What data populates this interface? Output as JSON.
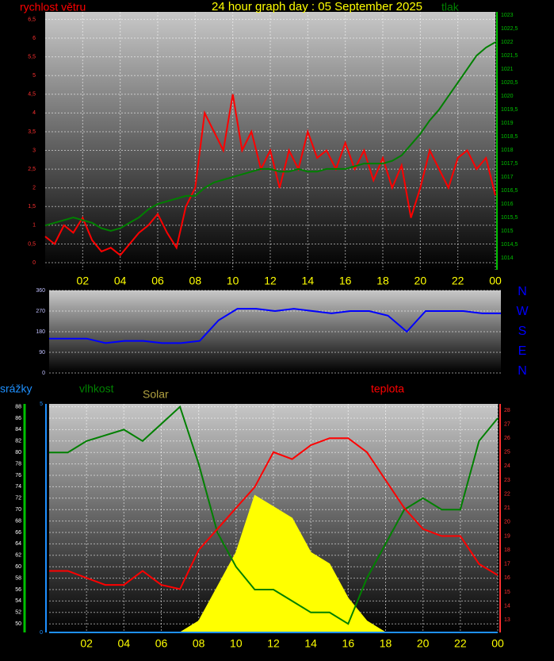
{
  "chart_data": [
    {
      "type": "line",
      "title": "24 hour graph day : 05 September 2025",
      "x": [
        0,
        0.5,
        1,
        1.5,
        2,
        2.5,
        3,
        3.5,
        4,
        4.5,
        5,
        5.5,
        6,
        6.5,
        7,
        7.5,
        8,
        8.5,
        9,
        9.5,
        10,
        10.5,
        11,
        11.5,
        12,
        12.5,
        13,
        13.5,
        14,
        14.5,
        15,
        15.5,
        16,
        16.5,
        17,
        17.5,
        18,
        18.5,
        19,
        19.5,
        20,
        20.5,
        21,
        21.5,
        22,
        22.5,
        23,
        23.5,
        24
      ],
      "xlim": [
        0,
        24
      ],
      "xticks": [
        {
          "value": 2,
          "label": "02"
        },
        {
          "value": 4,
          "label": "04"
        },
        {
          "value": 6,
          "label": "06"
        },
        {
          "value": 8,
          "label": "08"
        },
        10,
        12,
        14,
        16,
        18,
        20,
        22,
        {
          "value": 24,
          "label": "00"
        }
      ],
      "ylim": [
        -0.19,
        6.7
      ],
      "yticks": [
        0,
        {
          "value": 0.5,
          "label": "0,5"
        },
        1,
        {
          "value": 1.5,
          "label": "1,5"
        },
        2,
        {
          "value": 2.5,
          "label": "2,5"
        },
        3,
        {
          "value": 3.5,
          "label": "3,5"
        },
        4,
        {
          "value": 4.5,
          "label": "4,5"
        },
        5,
        {
          "value": 5.5,
          "label": "5,5"
        },
        6,
        {
          "value": 6.5,
          "label": "6,5"
        }
      ],
      "y2lim": [
        1013.56,
        1023.12
      ],
      "y2ticks": [
        1014,
        {
          "value": 1014.5,
          "label": "1014,5"
        },
        1015,
        {
          "value": 1015.5,
          "label": "1015,5"
        },
        1016,
        {
          "value": 1016.5,
          "label": "1016,5"
        },
        1017,
        {
          "value": 1017.5,
          "label": "1017,5"
        },
        1018,
        {
          "value": 1018.5,
          "label": "1018,5"
        },
        1019,
        {
          "value": 1019.5,
          "label": "1019,5"
        },
        1020,
        {
          "value": 1020.5,
          "label": "1020,5"
        },
        1021,
        {
          "value": 1021.5,
          "label": "1021,5"
        },
        1022,
        {
          "value": 1022.5,
          "label": "1022,5"
        },
        1023
      ],
      "grid": true,
      "series": [
        {
          "name": "rychlost větru",
          "color": "#ff0000",
          "values": [
            0.7,
            0.5,
            1.0,
            0.8,
            1.2,
            0.6,
            0.3,
            0.4,
            0.2,
            0.5,
            0.8,
            1.0,
            1.3,
            0.8,
            0.4,
            1.5,
            2.0,
            4.0,
            3.5,
            3.0,
            4.5,
            3.0,
            3.5,
            2.5,
            3.0,
            2.0,
            3.0,
            2.5,
            3.5,
            2.8,
            3.0,
            2.5,
            3.2,
            2.5,
            3.0,
            2.2,
            2.8,
            2.0,
            2.6,
            1.2,
            2.0,
            3.0,
            2.5,
            2.0,
            2.8,
            3.0,
            2.5,
            2.8,
            1.8
          ]
        },
        {
          "name": "tlak",
          "color": "#008000",
          "axis": "y2",
          "values": [
            1015.2,
            1015.3,
            1015.4,
            1015.5,
            1015.4,
            1015.3,
            1015.1,
            1015.0,
            1015.1,
            1015.3,
            1015.5,
            1015.8,
            1016.0,
            1016.1,
            1016.2,
            1016.3,
            1016.3,
            1016.6,
            1016.8,
            1016.9,
            1017.0,
            1017.1,
            1017.2,
            1017.3,
            1017.3,
            1017.2,
            1017.2,
            1017.3,
            1017.2,
            1017.2,
            1017.3,
            1017.3,
            1017.3,
            1017.4,
            1017.5,
            1017.5,
            1017.5,
            1017.6,
            1017.8,
            1018.2,
            1018.6,
            1019.1,
            1019.5,
            1020.0,
            1020.5,
            1021.0,
            1021.5,
            1021.8,
            1022.0
          ]
        }
      ]
    },
    {
      "type": "line",
      "x": [
        0,
        1,
        2,
        3,
        4,
        5,
        6,
        7,
        8,
        9,
        10,
        11,
        12,
        13,
        14,
        15,
        16,
        17,
        18,
        19,
        20,
        21,
        22,
        23,
        24
      ],
      "xlim": [
        0,
        24
      ],
      "ylim": [
        0,
        360
      ],
      "yticks": [
        0,
        90,
        180,
        270,
        360
      ],
      "grid": true,
      "direction_labels": [
        "N",
        "W",
        "S",
        "E",
        "N"
      ],
      "series": [
        {
          "color": "#0000ff",
          "values": [
            150,
            150,
            150,
            130,
            140,
            140,
            130,
            130,
            140,
            230,
            280,
            280,
            270,
            280,
            270,
            260,
            270,
            270,
            250,
            180,
            270,
            270,
            270,
            260,
            260
          ]
        }
      ]
    },
    {
      "type": "line",
      "x": [
        0,
        1,
        2,
        3,
        4,
        5,
        6,
        7,
        8,
        9,
        10,
        11,
        12,
        13,
        14,
        15,
        16,
        17,
        18,
        19,
        20,
        21,
        22,
        23,
        24
      ],
      "xlim": [
        0,
        24
      ],
      "xticks": [
        {
          "value": 2,
          "label": "02"
        },
        {
          "value": 4,
          "label": "04"
        },
        {
          "value": 6,
          "label": "06"
        },
        {
          "value": 8,
          "label": "08"
        },
        10,
        12,
        14,
        16,
        18,
        20,
        22,
        {
          "value": 24,
          "label": "00"
        }
      ],
      "ylim": [
        48.5,
        88.5
      ],
      "yticks": [
        50,
        52,
        54,
        56,
        58,
        60,
        62,
        64,
        66,
        68,
        70,
        72,
        74,
        76,
        78,
        80,
        82,
        84,
        86,
        88
      ],
      "y2lim": [
        12.1,
        28.45
      ],
      "y2ticks": [
        13,
        14,
        15,
        16,
        17,
        18,
        19,
        20,
        21,
        22,
        23,
        24,
        25,
        26,
        27,
        28
      ],
      "y3lim": [
        0,
        5
      ],
      "y3ticks": [
        0,
        5
      ],
      "y4lim": [
        0,
        100
      ],
      "grid": true,
      "series": [
        {
          "name": "srážky",
          "color": "#1e90ff",
          "axis": "y3",
          "values": [
            0,
            0,
            0,
            0,
            0,
            0,
            0,
            0,
            0,
            0,
            0,
            0,
            0,
            0,
            0,
            0,
            0,
            0,
            0,
            0,
            0,
            0,
            0,
            0,
            0
          ]
        },
        {
          "name": "vlhkost",
          "color": "#008000",
          "values": [
            80,
            80,
            82,
            83,
            84,
            82,
            85,
            88,
            78,
            66,
            60,
            56,
            56,
            54,
            52,
            52,
            50,
            58,
            64,
            70,
            72,
            70,
            70,
            82,
            86
          ]
        },
        {
          "name": "Solar",
          "color": "#ffff00",
          "axis": "y4",
          "area": true,
          "values": [
            0,
            0,
            0,
            0,
            0,
            0,
            0,
            0,
            5,
            20,
            35,
            60,
            55,
            50,
            35,
            30,
            15,
            5,
            0,
            0,
            0,
            0,
            0,
            0,
            0
          ]
        },
        {
          "name": "teplota",
          "color": "#ff0000",
          "axis": "y2",
          "values": [
            16.5,
            16.5,
            16,
            15.5,
            15.5,
            16.5,
            15.5,
            15.2,
            18,
            19.5,
            21,
            22.5,
            25,
            24.5,
            25.5,
            26,
            26,
            25,
            23,
            21,
            19.5,
            19,
            19,
            17,
            16.2
          ]
        }
      ]
    }
  ]
}
